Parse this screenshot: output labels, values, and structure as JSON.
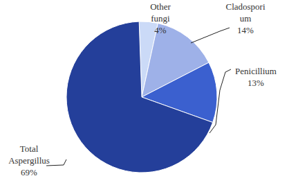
{
  "chart_data": {
    "type": "pie",
    "categories": [
      "Other fungi",
      "Cladosporium",
      "Penicillium",
      "Total Aspergillus"
    ],
    "values": [
      4,
      14,
      13,
      69
    ],
    "value_labels": [
      "4%",
      "14%",
      "13%",
      "69%"
    ],
    "colors": [
      "#cbdaf7",
      "#9eb1e8",
      "#3b60cf",
      "#243f9a"
    ]
  }
}
